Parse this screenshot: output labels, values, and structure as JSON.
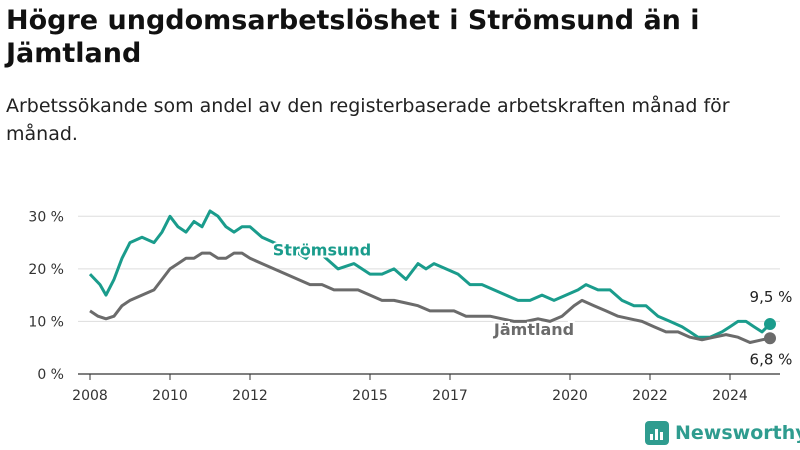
{
  "title": "Högre ungdomsarbetslöshet i Strömsund än i Jämtland",
  "subtitle": "Arbetssökande som andel av den registerbaserade arbetskraften månad för månad.",
  "logo": {
    "icon": "bar-chart-icon",
    "text": "Newsworthy"
  },
  "chart_data": {
    "type": "line",
    "ylim": [
      0,
      35
    ],
    "xlim": [
      2007.7,
      2025.5
    ],
    "yticks": [
      0,
      10,
      20,
      30
    ],
    "ytick_labels": [
      "0 %",
      "10 %",
      "20 %",
      "30 %"
    ],
    "xticks": [
      2008,
      2010,
      2012,
      2015,
      2017,
      2020,
      2022,
      2024
    ],
    "xtick_labels": [
      "2008",
      "2010",
      "2012",
      "2015",
      "2017",
      "2020",
      "2022",
      "2024"
    ],
    "grid": true,
    "series": [
      {
        "name": "Strömsund",
        "color": "#1a9c8c",
        "end_label": "9,5 %",
        "x": [
          2008.0,
          2008.25,
          2008.4,
          2008.6,
          2008.8,
          2009.0,
          2009.3,
          2009.6,
          2009.8,
          2010.0,
          2010.2,
          2010.4,
          2010.6,
          2010.8,
          2011.0,
          2011.2,
          2011.4,
          2011.6,
          2011.8,
          2012.0,
          2012.3,
          2012.6,
          2012.9,
          2013.2,
          2013.4,
          2013.6,
          2013.9,
          2014.2,
          2014.6,
          2015.0,
          2015.3,
          2015.6,
          2015.9,
          2016.2,
          2016.4,
          2016.6,
          2016.9,
          2017.2,
          2017.5,
          2017.8,
          2018.1,
          2018.4,
          2018.7,
          2019.0,
          2019.3,
          2019.6,
          2019.9,
          2020.2,
          2020.4,
          2020.7,
          2021.0,
          2021.3,
          2021.6,
          2021.9,
          2022.2,
          2022.5,
          2022.8,
          2023.0,
          2023.2,
          2023.5,
          2023.8,
          2024.0,
          2024.2,
          2024.4,
          2024.6,
          2024.8,
          2025.0
        ],
        "y": [
          19,
          17,
          15,
          18,
          22,
          25,
          26,
          25,
          27,
          30,
          28,
          27,
          29,
          28,
          31,
          30,
          28,
          27,
          28,
          28,
          26,
          25,
          24,
          23,
          22,
          24,
          22,
          20,
          21,
          19,
          19,
          20,
          18,
          21,
          20,
          21,
          20,
          19,
          17,
          17,
          16,
          15,
          14,
          14,
          15,
          14,
          15,
          16,
          17,
          16,
          16,
          14,
          13,
          13,
          11,
          10,
          9,
          8,
          7,
          7,
          8,
          9,
          10,
          10,
          9,
          8,
          9.5
        ]
      },
      {
        "name": "Jämtland",
        "color": "#6b6b6b",
        "end_label": "6,8 %",
        "x": [
          2008.0,
          2008.2,
          2008.4,
          2008.6,
          2008.8,
          2009.0,
          2009.3,
          2009.6,
          2009.8,
          2010.0,
          2010.2,
          2010.4,
          2010.6,
          2010.8,
          2011.0,
          2011.2,
          2011.4,
          2011.6,
          2011.8,
          2012.0,
          2012.3,
          2012.6,
          2012.9,
          2013.2,
          2013.5,
          2013.8,
          2014.1,
          2014.4,
          2014.7,
          2015.0,
          2015.3,
          2015.6,
          2015.9,
          2016.2,
          2016.5,
          2016.8,
          2017.1,
          2017.4,
          2017.7,
          2018.0,
          2018.3,
          2018.6,
          2018.9,
          2019.2,
          2019.5,
          2019.8,
          2020.1,
          2020.3,
          2020.6,
          2020.9,
          2021.2,
          2021.5,
          2021.8,
          2022.1,
          2022.4,
          2022.7,
          2023.0,
          2023.3,
          2023.6,
          2023.9,
          2024.2,
          2024.5,
          2024.8,
          2025.0
        ],
        "y": [
          12,
          11,
          10.5,
          11,
          13,
          14,
          15,
          16,
          18,
          20,
          21,
          22,
          22,
          23,
          23,
          22,
          22,
          23,
          23,
          22,
          21,
          20,
          19,
          18,
          17,
          17,
          16,
          16,
          16,
          15,
          14,
          14,
          13.5,
          13,
          12,
          12,
          12,
          11,
          11,
          11,
          10.5,
          10,
          10,
          10.5,
          10,
          11,
          13,
          14,
          13,
          12,
          11,
          10.5,
          10,
          9,
          8,
          8,
          7,
          6.5,
          7,
          7.5,
          7,
          6,
          6.5,
          6.8
        ]
      }
    ]
  }
}
